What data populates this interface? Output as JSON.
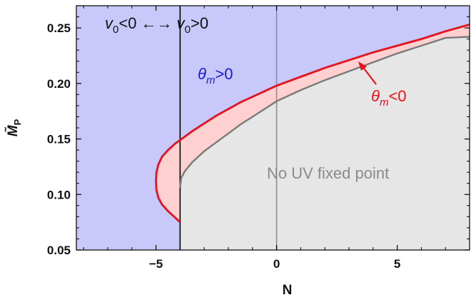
{
  "chart_data": {
    "type": "area",
    "xlabel": "N",
    "ylabel": "M̃P",
    "xlim": [
      -8.3,
      8
    ],
    "ylim": [
      0.05,
      0.27
    ],
    "xticks": [
      -5,
      0,
      5
    ],
    "xtick_labels": [
      "−5",
      "0",
      "5"
    ],
    "yticks": [
      0.05,
      0.1,
      0.15,
      0.2,
      0.25
    ],
    "ytick_labels": [
      "0.05",
      "0.10",
      "0.15",
      "0.20",
      "0.25"
    ],
    "vertical_lines": [
      -4,
      0
    ],
    "region_colors": {
      "positive": "#c8c8fa",
      "negative": "#ffd0d0",
      "none": "#e6e6e6",
      "upper_boundary": "#e8101a",
      "lower_boundary": "#7a7a7a"
    },
    "series": [
      {
        "x": [
          -5.0,
          -4.98,
          -4.9,
          -4.75,
          -4.5,
          -4.2,
          -4.0,
          -3.5,
          -3.0,
          -2.5,
          -2.0,
          -1.5,
          -1.0,
          -0.5,
          0.0,
          1.0,
          2.0,
          3.0,
          4.0,
          5.0,
          6.0,
          7.0,
          8.0
        ],
        "values": [
          0.112,
          0.12,
          0.127,
          0.134,
          0.14,
          0.146,
          0.149,
          0.157,
          0.164,
          0.171,
          0.177,
          0.183,
          0.188,
          0.193,
          0.198,
          0.206,
          0.214,
          0.221,
          0.228,
          0.234,
          0.24,
          0.247,
          0.253
        ]
      },
      {
        "x": [
          -5.0,
          -4.98,
          -4.9,
          -4.75,
          -4.5,
          -4.2,
          -4.0
        ],
        "values": [
          0.112,
          0.104,
          0.097,
          0.091,
          0.085,
          0.079,
          0.075
        ]
      },
      {
        "x": [
          -4.0,
          -3.95,
          -3.8,
          -3.5,
          -3.0,
          -2.5,
          -2.0,
          -1.5,
          -1.0,
          -0.5,
          0.0,
          1.0,
          2.0,
          3.0,
          4.0,
          5.0,
          6.0,
          7.0,
          8.0
        ],
        "values": [
          0.106,
          0.115,
          0.121,
          0.129,
          0.139,
          0.147,
          0.155,
          0.163,
          0.17,
          0.177,
          0.184,
          0.194,
          0.203,
          0.211,
          0.219,
          0.227,
          0.234,
          0.241,
          0.242
        ]
      }
    ],
    "annotations": [
      {
        "text": "v0<0 ←→ v0>0"
      },
      {
        "text": "θm>0"
      },
      {
        "text": "θm<0"
      },
      {
        "text": "No UV fixed point"
      }
    ]
  }
}
